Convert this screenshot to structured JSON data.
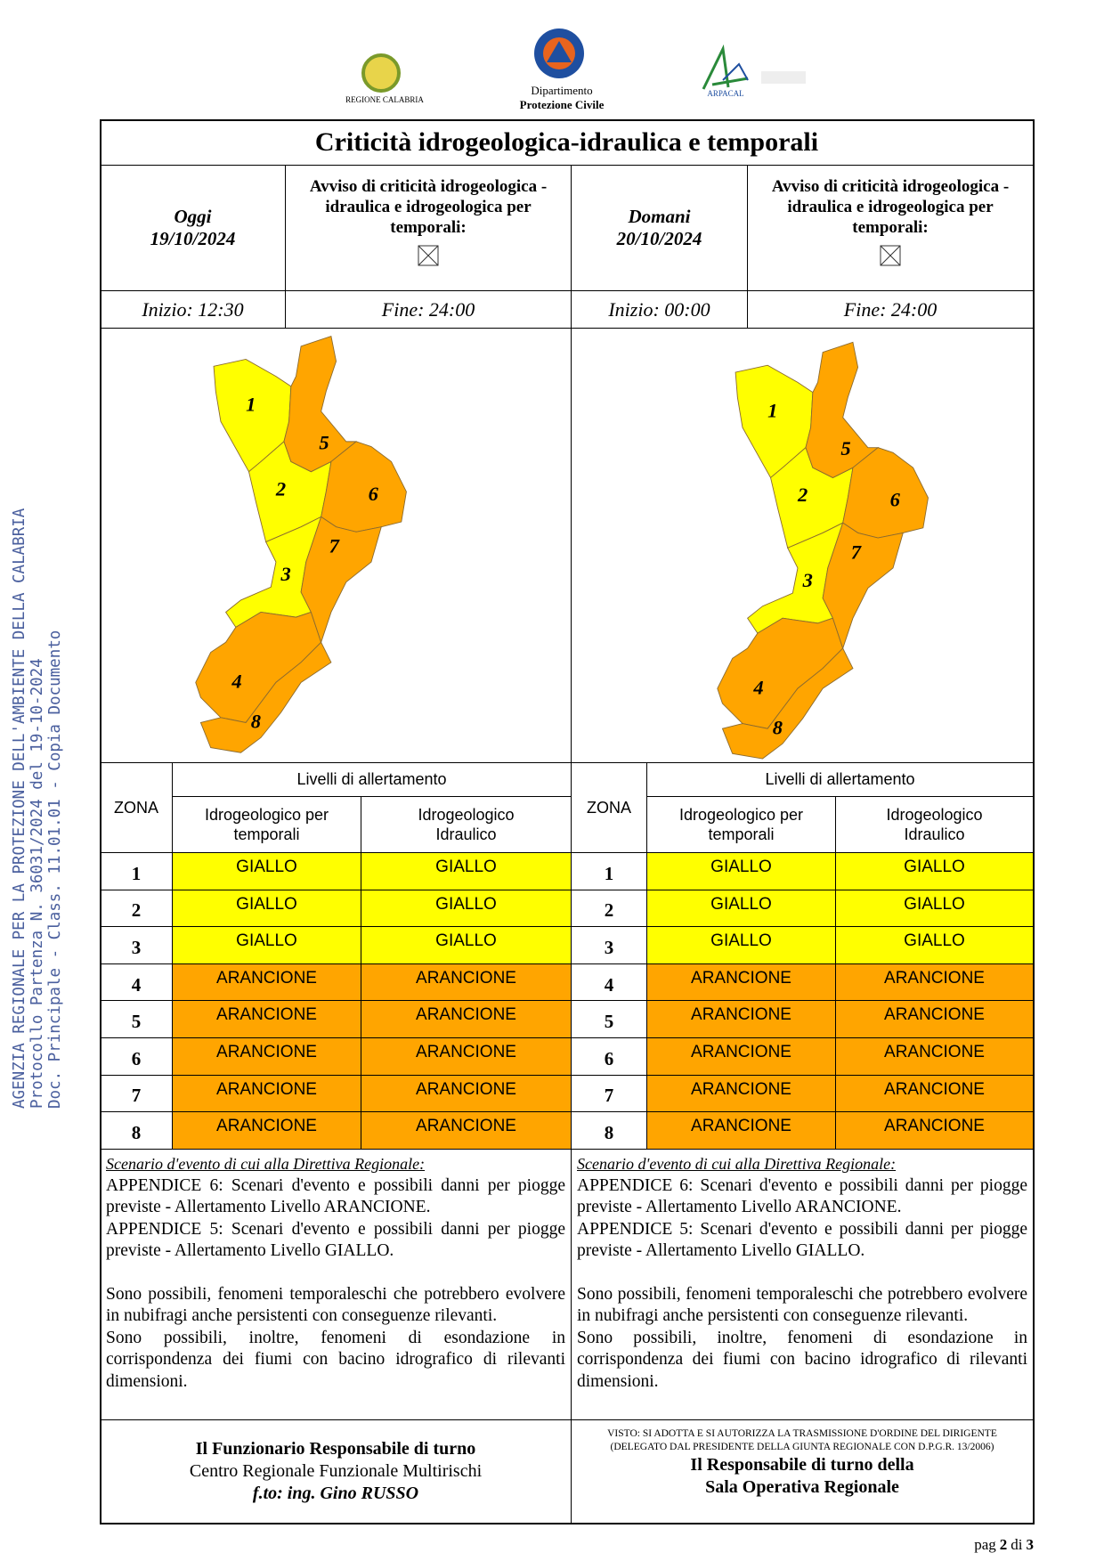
{
  "logos": {
    "left": "REGIONE CALABRIA",
    "center": [
      "Dipartimento",
      "Protezione Civile"
    ],
    "right": "ARPACAL"
  },
  "sidebar": [
    "AGENZIA REGIONALE PER LA PROTEZIONE DELL'AMBIENTE DELLA CALABRIA",
    "Protocollo Partenza N. 36031/2024 del 19-10-2024",
    "Doc. Principale - Class. 11.01.01 - Copia Documento"
  ],
  "title": "Criticità idrogeologica-idraulica e temporali",
  "days": [
    {
      "label": "Oggi",
      "date": "19/10/2024",
      "avviso": "Avviso di criticità idrogeologica - idraulica e idrogeologica per temporali:",
      "inizio": "Inizio: 12:30",
      "fine": "Fine: 24:00",
      "map_labels": [
        "1",
        "2",
        "3",
        "4",
        "5",
        "6",
        "7",
        "8"
      ],
      "table": {
        "zona": "ZONA",
        "livelli": "Livelli di allertamento",
        "col1": "Idrogeologico per temporali",
        "col2": "Idrogeologico Idraulico",
        "rows": [
          {
            "zona": "1",
            "col1": "GIALLO",
            "col2": "GIALLO",
            "color": "#ffff00"
          },
          {
            "zona": "2",
            "col1": "GIALLO",
            "col2": "GIALLO",
            "color": "#ffff00"
          },
          {
            "zona": "3",
            "col1": "GIALLO",
            "col2": "GIALLO",
            "color": "#ffff00"
          },
          {
            "zona": "4",
            "col1": "ARANCIONE",
            "col2": "ARANCIONE",
            "color": "#ffa500"
          },
          {
            "zona": "5",
            "col1": "ARANCIONE",
            "col2": "ARANCIONE",
            "color": "#ffa500"
          },
          {
            "zona": "6",
            "col1": "ARANCIONE",
            "col2": "ARANCIONE",
            "color": "#ffa500"
          },
          {
            "zona": "7",
            "col1": "ARANCIONE",
            "col2": "ARANCIONE",
            "color": "#ffa500"
          },
          {
            "zona": "8",
            "col1": "ARANCIONE",
            "col2": "ARANCIONE",
            "color": "#ffa500"
          }
        ]
      },
      "scenario": {
        "heading": "Scenario d'evento di cui alla Direttiva Regionale:",
        "paragraphs": [
          "APPENDICE 6: Scenari d'evento e possibili danni per piogge previste - Allertamento Livello ARANCIONE.",
          "APPENDICE 5: Scenari d'evento e possibili danni per piogge previste - Allertamento Livello GIALLO.",
          "Sono possibili, fenomeni temporaleschi che potrebbero evolvere in nubifragi anche persistenti con conseguenze rilevanti.",
          "Sono possibili, inoltre, fenomeni di esondazione in corrispondenza dei fiumi con bacino idrografico di rilevanti dimensioni."
        ]
      }
    },
    {
      "label": "Domani",
      "date": "20/10/2024",
      "avviso": "Avviso di criticità idrogeologica - idraulica e idrogeologica per temporali:",
      "inizio": "Inizio: 00:00",
      "fine": "Fine: 24:00",
      "map_labels": [
        "1",
        "2",
        "3",
        "4",
        "5",
        "6",
        "7",
        "8"
      ],
      "table": {
        "zona": "ZONA",
        "livelli": "Livelli di allertamento",
        "col1": "Idrogeologico per temporali",
        "col2": "Idrogeologico Idraulico",
        "rows": [
          {
            "zona": "1",
            "col1": "GIALLO",
            "col2": "GIALLO",
            "color": "#ffff00"
          },
          {
            "zona": "2",
            "col1": "GIALLO",
            "col2": "GIALLO",
            "color": "#ffff00"
          },
          {
            "zona": "3",
            "col1": "GIALLO",
            "col2": "GIALLO",
            "color": "#ffff00"
          },
          {
            "zona": "4",
            "col1": "ARANCIONE",
            "col2": "ARANCIONE",
            "color": "#ffa500"
          },
          {
            "zona": "5",
            "col1": "ARANCIONE",
            "col2": "ARANCIONE",
            "color": "#ffa500"
          },
          {
            "zona": "6",
            "col1": "ARANCIONE",
            "col2": "ARANCIONE",
            "color": "#ffa500"
          },
          {
            "zona": "7",
            "col1": "ARANCIONE",
            "col2": "ARANCIONE",
            "color": "#ffa500"
          },
          {
            "zona": "8",
            "col1": "ARANCIONE",
            "col2": "ARANCIONE",
            "color": "#ffa500"
          }
        ]
      },
      "scenario": {
        "heading": "Scenario d'evento di cui alla Direttiva Regionale:",
        "paragraphs": [
          "APPENDICE 6: Scenari d'evento e possibili danni per piogge previste - Allertamento Livello ARANCIONE.",
          "APPENDICE 5: Scenari d'evento e possibili danni per piogge previste - Allertamento Livello GIALLO.",
          "Sono possibili, fenomeni temporaleschi che potrebbero evolvere in nubifragi anche persistenti con conseguenze rilevanti.",
          "Sono possibili, inoltre, fenomeni di esondazione in corrispondenza dei fiumi con bacino idrografico di rilevanti dimensioni."
        ]
      }
    }
  ],
  "footer": {
    "left": {
      "title": "Il Funzionario Responsabile di turno",
      "subtitle": "Centro Regionale Funzionale Multirischi",
      "signature": "f.to: ing. Gino RUSSO"
    },
    "right": {
      "note": [
        "VISTO: SI ADOTTA E SI AUTORIZZA LA TRASMISSIONE D'ORDINE DEL DIRIGENTE",
        "(DELEGATO DAL PRESIDENTE DELLA GIUNTA REGIONALE CON D.P.G.R. 13/2006)"
      ],
      "title": [
        "Il Responsabile di turno della",
        "Sala Operativa Regionale"
      ]
    }
  },
  "page": {
    "prefix": "pag",
    "current": "2",
    "of": "di",
    "total": "3"
  }
}
